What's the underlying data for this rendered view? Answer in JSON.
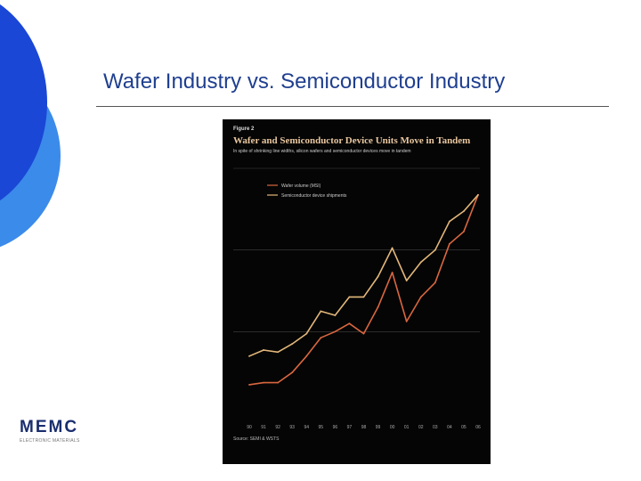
{
  "slide": {
    "title": "Wafer Industry vs. Semiconductor Industry",
    "logo_text": "MEMC",
    "logo_subtext": "ELECTRONIC MATERIALS",
    "colors": {
      "accent_blue": "#1f4fd8",
      "light_blue": "#3b8bea",
      "title": "#1f3f8f"
    }
  },
  "chart_data": {
    "type": "line",
    "figure_label": "Figure 2",
    "title": "Wafer and Semiconductor Device Units Move in Tandem",
    "subtitle": "In spite of shrinking line widths, silicon wafers and semiconductor devices move in tandem",
    "source": "Source: SEMI & WSTS",
    "legend_placement": "top-left",
    "grid": "horizontal",
    "x": [
      "90",
      "91",
      "92",
      "93",
      "94",
      "95",
      "96",
      "97",
      "98",
      "99",
      "00",
      "01",
      "02",
      "03",
      "04",
      "05",
      "06"
    ],
    "series": [
      {
        "name": "Wafer volume (MSI)",
        "color": "#d9673f",
        "values": [
          14,
          15,
          15,
          20,
          28,
          37,
          40,
          44,
          39,
          52,
          69,
          45,
          57,
          64,
          83,
          89,
          107
        ]
      },
      {
        "name": "Semiconductor device shipments",
        "color": "#e3b77a",
        "values": [
          28,
          31,
          30,
          34,
          39,
          50,
          48,
          57,
          57,
          67,
          81,
          65,
          74,
          80,
          94,
          99,
          107
        ]
      }
    ]
  }
}
